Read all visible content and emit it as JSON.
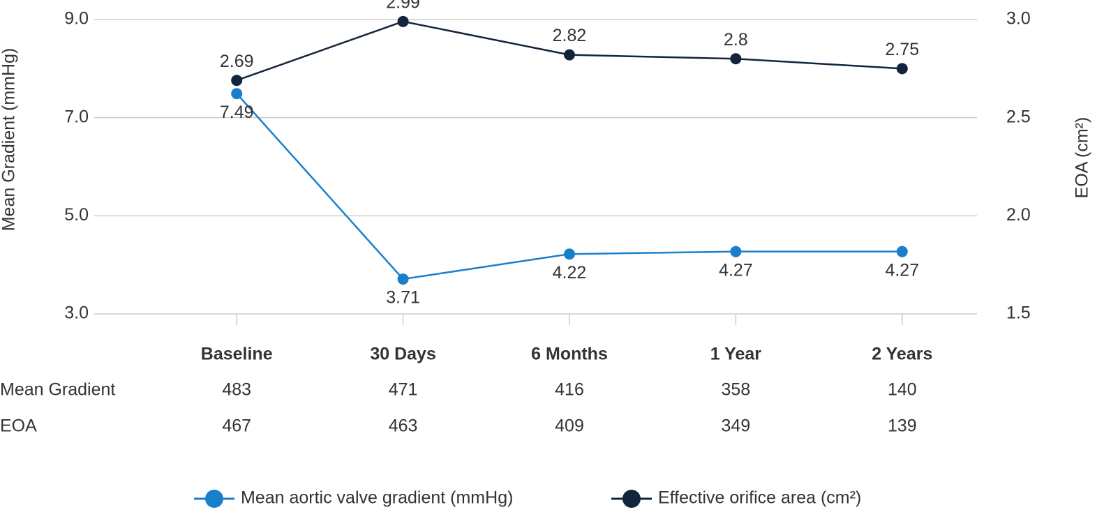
{
  "chart_data": {
    "type": "line",
    "y_label": "Mean Gradient (mmHg)",
    "y2_label": "EOA (cm²)",
    "categories": [
      "Baseline",
      "30 Days",
      "6 Months",
      "1 Year",
      "2 Years"
    ],
    "series": [
      {
        "name": "Mean aortic valve gradient (mmHg)",
        "color": "#1a7fcb",
        "values": [
          7.49,
          3.71,
          4.22,
          4.27,
          4.27
        ]
      },
      {
        "name": "Effective orifice area (cm²)",
        "color": "#13243d",
        "axis": "y2",
        "values": [
          2.69,
          2.99,
          2.82,
          2.8,
          2.75
        ]
      }
    ],
    "ylim": [
      3,
      9
    ],
    "yticks": [
      {
        "value": 3,
        "label": "3.0"
      },
      {
        "value": 5,
        "label": "5.0"
      },
      {
        "value": 7,
        "label": "7.0"
      },
      {
        "value": 9,
        "label": "9.0"
      }
    ],
    "y2lim": [
      1.5,
      3
    ],
    "y2ticks": [
      1.5,
      {
        "value": 2,
        "label": "2.0"
      },
      2.5,
      {
        "value": 3,
        "label": "3.0"
      }
    ],
    "grid": true,
    "legend": "bottom"
  },
  "table": {
    "rows": [
      {
        "label": "Mean Gradient",
        "values": [
          483,
          471,
          416,
          358,
          140
        ]
      },
      {
        "label": "EOA",
        "values": [
          467,
          463,
          409,
          349,
          139
        ]
      }
    ]
  }
}
